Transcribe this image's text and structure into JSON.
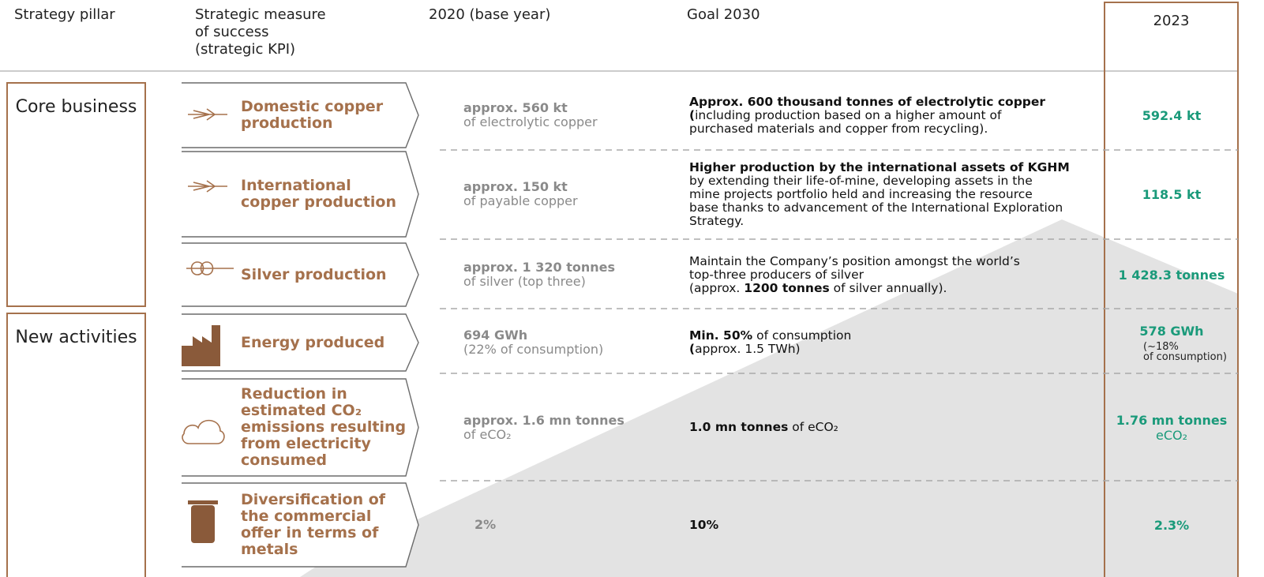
{
  "header": {
    "columns": [
      {
        "lines": [
          "Strategy pillar"
        ]
      },
      {
        "lines": [
          "Strategic measure",
          "of success",
          "(strategic KPI)"
        ]
      },
      {
        "lines": [
          "2020 (base year)"
        ]
      },
      {
        "lines": [
          "Goal 2030"
        ]
      },
      {
        "lines": [
          "2023"
        ]
      }
    ]
  },
  "pillars": [
    {
      "label": "Core business"
    },
    {
      "label": "New activities"
    }
  ],
  "rows": [
    {
      "kpi": [
        "Domestic copper",
        "production"
      ],
      "base": {
        "value": "approx. 560 kt",
        "note": "of electrolytic copper"
      },
      "goal": [
        [
          {
            "text": "Approx. 600 thousand tonnes of electrolytic copper",
            "bold": true
          }
        ],
        [
          {
            "text": "(",
            "bold": true
          },
          {
            "text": "including production based on a higher amount of"
          }
        ],
        [
          {
            "text": "purchased materials and copper from recycling)."
          }
        ]
      ],
      "actual": {
        "value": "592.4 kt"
      }
    },
    {
      "kpi": [
        "International",
        "copper production"
      ],
      "base": {
        "value": "approx. 150 kt",
        "note": "of payable copper"
      },
      "goal": [
        [
          {
            "text": "Higher production by the international assets of KGHM",
            "bold": true
          }
        ],
        [
          {
            "text": "by extending their life-of-mine, developing assets in the"
          }
        ],
        [
          {
            "text": "mine projects portfolio held and increasing the resource"
          }
        ],
        [
          {
            "text": "base thanks to advancement of the International Exploration"
          }
        ],
        [
          {
            "text": "Strategy."
          }
        ]
      ],
      "actual": {
        "value": "118.5 kt"
      }
    },
    {
      "kpi": [
        "Silver production"
      ],
      "base": {
        "value": "approx. 1 320 tonnes",
        "note": "of silver (top three)"
      },
      "goal": [
        [
          {
            "text": "Maintain the Company’s position amongst the world’s"
          }
        ],
        [
          {
            "text": "top-three producers of silver"
          }
        ],
        [
          {
            "text": "(approx. "
          },
          {
            "text": "1200 tonnes",
            "bold": true
          },
          {
            "text": " of silver annually)."
          }
        ]
      ],
      "actual": {
        "value": "1 428.3 tonnes"
      }
    },
    {
      "kpi": [
        "Energy produced"
      ],
      "base": {
        "value": "694 GWh",
        "note": "(22% of consumption)"
      },
      "goal": [
        [
          {
            "text": "Min. 50%",
            "bold": true
          },
          {
            "text": " of consumption"
          }
        ],
        [
          {
            "text": "(",
            "bold": true
          },
          {
            "text": "approx. 1.5 TWh)"
          }
        ]
      ],
      "actual": {
        "value": "578 GWh",
        "note": [
          "(~18%",
          "of consumption)"
        ]
      }
    },
    {
      "kpi": [
        "Reduction in",
        "estimated CO₂",
        "emissions resulting",
        "from electricity",
        "consumed"
      ],
      "base": {
        "value": "approx. 1.6 mn tonnes",
        "note": "of eCO₂"
      },
      "goal": [
        [
          {
            "text": "1.0 mn tonnes",
            "bold": true
          },
          {
            "text": " of eCO₂"
          }
        ]
      ],
      "actual": {
        "value": "1.76 mn tonnes",
        "note": [
          "eCO₂"
        ]
      }
    },
    {
      "kpi": [
        "Diversification of",
        "the commercial",
        "offer in terms of",
        "metals"
      ],
      "base": {
        "value": "2%"
      },
      "goal": [
        [
          {
            "text": "10%",
            "bold": true
          }
        ]
      ],
      "actual": {
        "value": "2.3%"
      }
    }
  ]
}
